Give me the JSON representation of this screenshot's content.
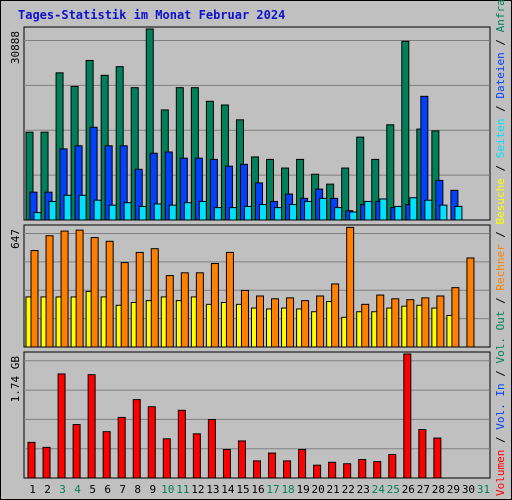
{
  "title": "Tages-Statistik im Monat Februar 2024",
  "colors": {
    "anfragen": "#00805a",
    "dateien": "#0040ff",
    "seiten": "#00e0ff",
    "besuche": "#ffff00",
    "rechner": "#ff8000",
    "volumen": "#ff0000",
    "weekend_label": "#00805a",
    "weekday_label": "#000000",
    "panel_bg": "#c0c0c0",
    "grid": "#808080"
  },
  "chart_data": [
    {
      "type": "bar",
      "id": "hits_files_pages",
      "ymax_label": "30888",
      "ylim": [
        0,
        30888
      ],
      "categories": [
        "1",
        "2",
        "3",
        "4",
        "5",
        "6",
        "7",
        "8",
        "9",
        "10",
        "11",
        "12",
        "13",
        "14",
        "15",
        "16",
        "17",
        "18",
        "19",
        "20",
        "21",
        "22",
        "23",
        "24",
        "25",
        "26",
        "27",
        "28",
        "29",
        "30",
        "31"
      ],
      "weekend_days": [
        "3",
        "4",
        "10",
        "11",
        "17",
        "18",
        "24",
        "25",
        "31"
      ],
      "series": [
        {
          "name": "Anfragen",
          "color_key": "anfragen",
          "values": [
            14200,
            14200,
            23800,
            21600,
            25800,
            23400,
            24800,
            21400,
            30888,
            17800,
            21400,
            21400,
            19200,
            18600,
            16200,
            10200,
            9800,
            8400,
            9800,
            7400,
            5800,
            8400,
            13400,
            9800,
            15400,
            28900,
            14700,
            14400,
            0,
            0,
            0
          ]
        },
        {
          "name": "Dateien",
          "color_key": "dateien",
          "values": [
            4500,
            4500,
            11500,
            12000,
            15000,
            12000,
            12000,
            8200,
            10800,
            11000,
            10000,
            10000,
            9800,
            8700,
            9000,
            6000,
            3000,
            4200,
            3500,
            5000,
            3500,
            1500,
            2500,
            3000,
            2000,
            2500,
            20000,
            6400,
            4800,
            0,
            0
          ]
        },
        {
          "name": "Seiten",
          "color_key": "seiten",
          "values": [
            1200,
            3000,
            4000,
            4000,
            3200,
            2400,
            2800,
            2200,
            2600,
            2400,
            2800,
            3000,
            2000,
            2000,
            2200,
            2500,
            2000,
            2500,
            3000,
            3500,
            2000,
            1300,
            3000,
            3400,
            2200,
            3600,
            3200,
            2400,
            2200,
            0,
            0
          ]
        }
      ]
    },
    {
      "type": "bar",
      "id": "visits_hosts",
      "ymax_label": "647",
      "ylim": [
        0,
        647
      ],
      "categories": [
        "1",
        "2",
        "3",
        "4",
        "5",
        "6",
        "7",
        "8",
        "9",
        "10",
        "11",
        "12",
        "13",
        "14",
        "15",
        "16",
        "17",
        "18",
        "19",
        "20",
        "21",
        "22",
        "23",
        "24",
        "25",
        "26",
        "27",
        "28",
        "29",
        "30",
        "31"
      ],
      "series": [
        {
          "name": "Besuche",
          "color_key": "besuche",
          "values": [
            270,
            270,
            270,
            270,
            300,
            270,
            225,
            240,
            250,
            270,
            250,
            270,
            230,
            240,
            230,
            210,
            205,
            210,
            205,
            190,
            245,
            160,
            190,
            190,
            210,
            220,
            225,
            210,
            170,
            0,
            0
          ]
        },
        {
          "name": "Rechner",
          "color_key": "rechner",
          "values": [
            520,
            600,
            625,
            630,
            590,
            570,
            455,
            510,
            530,
            385,
            400,
            400,
            450,
            510,
            305,
            275,
            260,
            265,
            250,
            275,
            340,
            645,
            230,
            280,
            260,
            255,
            265,
            275,
            320,
            480,
            0
          ]
        }
      ]
    },
    {
      "type": "bar",
      "id": "volume",
      "ymax_label": "1.74 GB",
      "ylim": [
        0,
        1.74
      ],
      "categories": [
        "1",
        "2",
        "3",
        "4",
        "5",
        "6",
        "7",
        "8",
        "9",
        "10",
        "11",
        "12",
        "13",
        "14",
        "15",
        "16",
        "17",
        "18",
        "19",
        "20",
        "21",
        "22",
        "23",
        "24",
        "25",
        "26",
        "27",
        "28",
        "29",
        "30",
        "31"
      ],
      "series": [
        {
          "name": "Volumen",
          "color_key": "volumen",
          "values": [
            0.5,
            0.43,
            1.46,
            0.75,
            1.45,
            0.65,
            0.85,
            1.1,
            1.0,
            0.55,
            0.95,
            0.62,
            0.82,
            0.4,
            0.52,
            0.24,
            0.35,
            0.24,
            0.4,
            0.18,
            0.22,
            0.2,
            0.26,
            0.23,
            0.33,
            1.74,
            0.68,
            0.56,
            0,
            0,
            0
          ]
        }
      ]
    }
  ],
  "side_legend": [
    {
      "text": "Volumen",
      "color_key": "volumen"
    },
    {
      "text": " / ",
      "color_key": "weekday_label"
    },
    {
      "text": "Vol. In",
      "color_key": "dateien"
    },
    {
      "text": " / ",
      "color_key": "weekday_label"
    },
    {
      "text": "Vol. Out",
      "color_key": "anfragen"
    },
    {
      "text": " / ",
      "color_key": "weekday_label"
    },
    {
      "text": "Rechner",
      "color_key": "rechner"
    },
    {
      "text": " / ",
      "color_key": "weekday_label"
    },
    {
      "text": "Besuche",
      "color_key": "besuche"
    },
    {
      "text": " / ",
      "color_key": "weekday_label"
    },
    {
      "text": "Seiten",
      "color_key": "seiten"
    },
    {
      "text": " / ",
      "color_key": "weekday_label"
    },
    {
      "text": "Dateien",
      "color_key": "dateien"
    },
    {
      "text": " / ",
      "color_key": "weekday_label"
    },
    {
      "text": "Anfragen",
      "color_key": "anfragen"
    }
  ]
}
